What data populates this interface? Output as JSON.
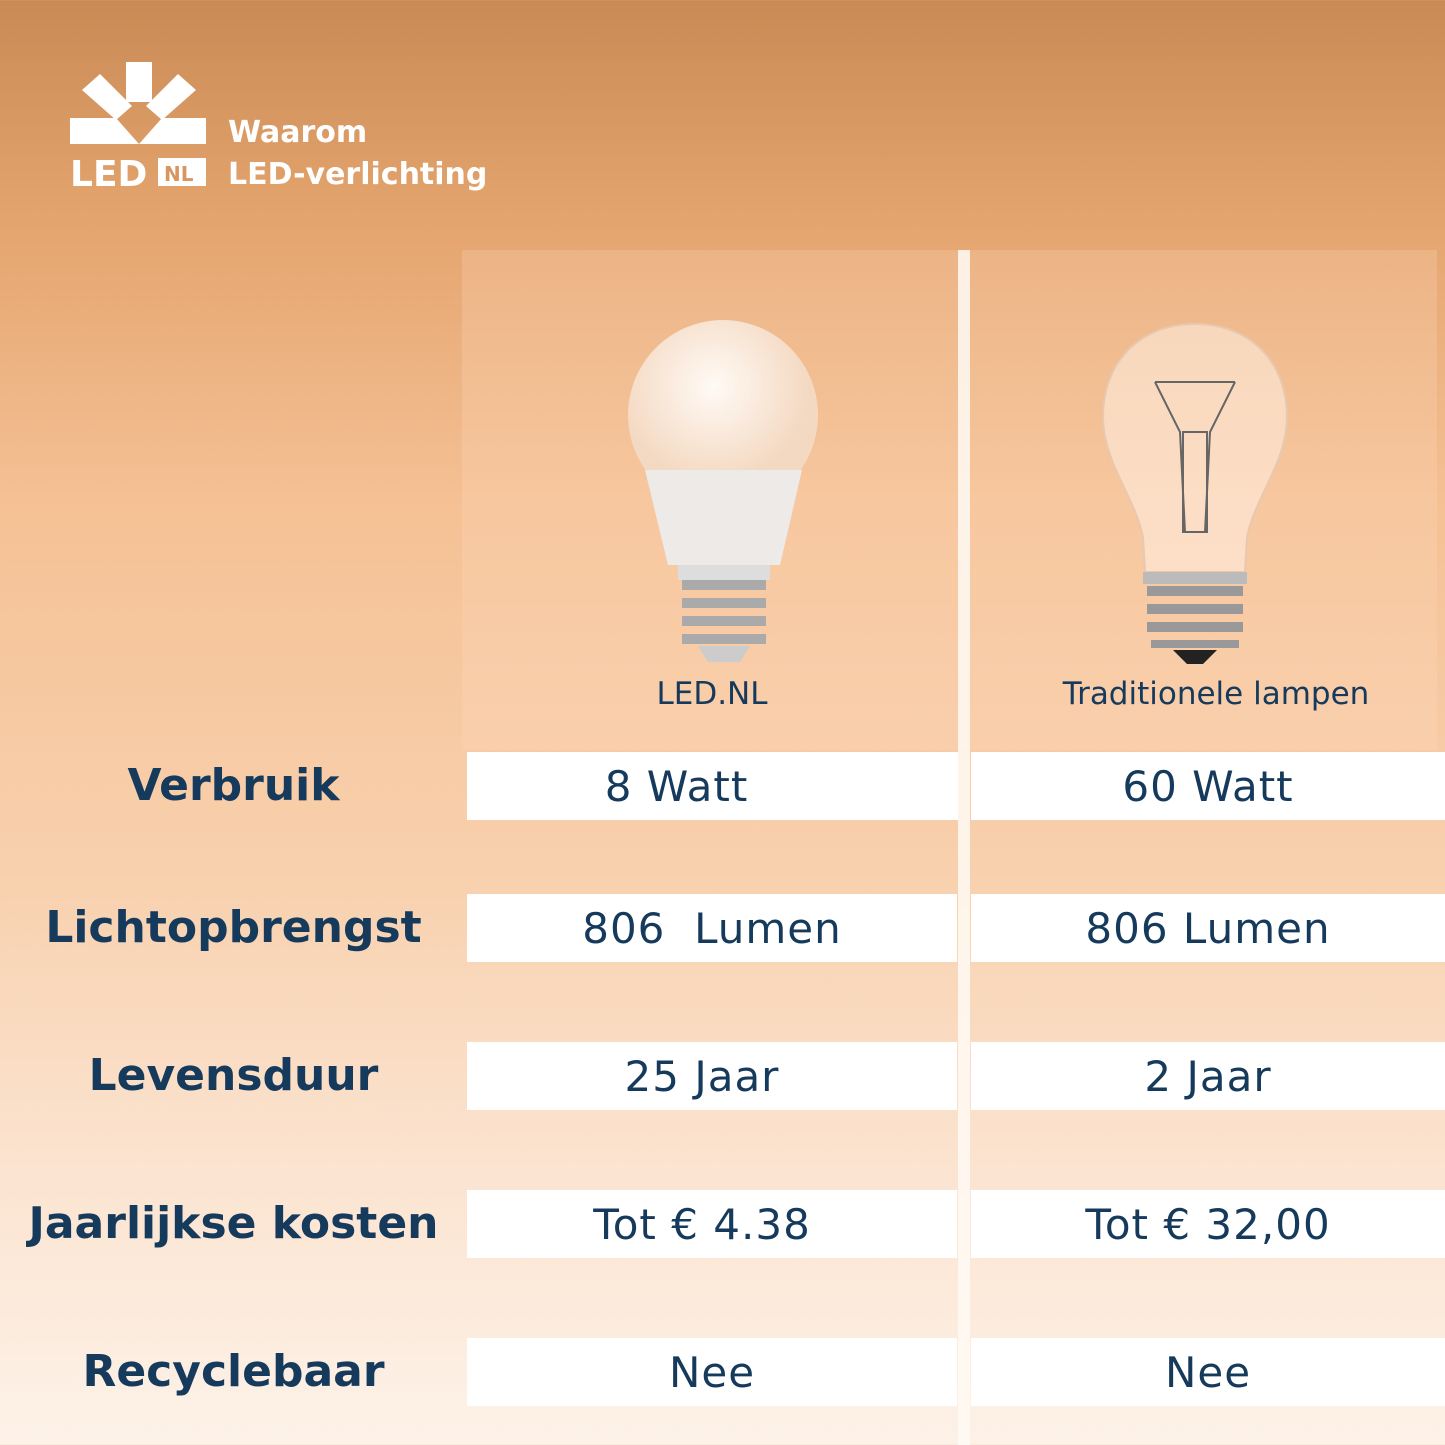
{
  "brand": {
    "logo_text": "LED NL",
    "title_line1": "Waarom",
    "title_line2": "LED-verlichting"
  },
  "columns": [
    {
      "label": "LED.NL",
      "icon": "led-bulb-icon"
    },
    {
      "label": "Traditionele lampen",
      "icon": "incandescent-bulb-icon"
    }
  ],
  "rows": [
    {
      "label": "Verbruik",
      "led": "8 Watt",
      "traditional": "60 Watt"
    },
    {
      "label": "Lichtopbrengst",
      "led": "806  Lumen",
      "traditional": "806 Lumen"
    },
    {
      "label": "Levensduur",
      "led": "25 Jaar",
      "traditional": "2 Jaar"
    },
    {
      "label": "Jaarlijkse kosten",
      "led": "Tot € 4.38",
      "traditional": "Tot € 32,00"
    },
    {
      "label": "Recyclebaar",
      "led": "Nee",
      "traditional": "Nee"
    }
  ],
  "colors": {
    "text": "#163a5c",
    "accent": "#e4a46e"
  }
}
